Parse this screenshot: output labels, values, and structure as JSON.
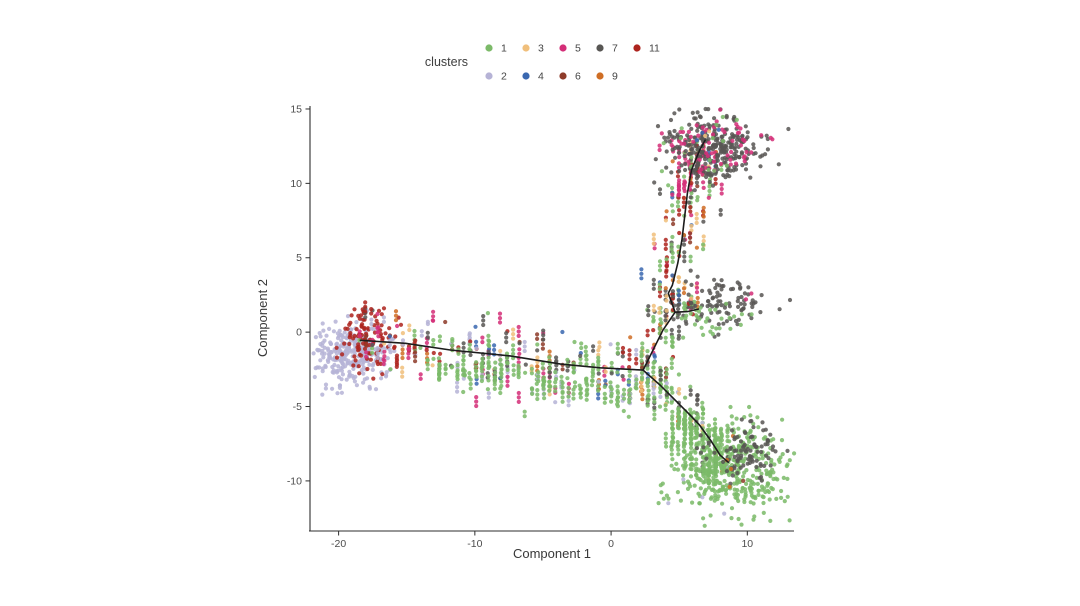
{
  "figure": {
    "background": "#ffffff"
  },
  "legend": {
    "title": "clusters",
    "rows": [
      [
        "1",
        "3",
        "5",
        "7",
        "11"
      ],
      [
        "2",
        "4",
        "6",
        "9"
      ]
    ]
  },
  "chart_data": {
    "type": "scatter",
    "title": "",
    "xlabel": "Component 1",
    "ylabel": "Component 2",
    "xlim": [
      -22.1,
      13.5
    ],
    "ylim": [
      -13.3,
      15.2
    ],
    "x_ticks": [
      -20,
      -10,
      0,
      10
    ],
    "y_ticks": [
      15,
      10,
      5,
      0,
      -5,
      -10
    ],
    "grid": false,
    "legend_position": "top",
    "legend_title": "clusters",
    "palette": {
      "1": "#7cba69",
      "2": "#b6b3d6",
      "3": "#f0bf7c",
      "4": "#3a68b0",
      "5": "#d42e78",
      "6": "#8e3b2a",
      "7": "#585654",
      "9": "#cf6e25",
      "11": "#ad241e"
    },
    "trajectory_color": "#1c1c1c",
    "trajectory": {
      "left_arm": [
        [
          -18.4,
          -0.55
        ],
        [
          -15.1,
          -0.75
        ],
        [
          -11.8,
          -1.2
        ],
        [
          -7.4,
          -1.6
        ],
        [
          -3.7,
          -2.15
        ],
        [
          -0.8,
          -2.4
        ],
        [
          2.35,
          -2.55
        ]
      ],
      "upper_branch": [
        [
          2.35,
          -2.55
        ],
        [
          3.8,
          0.13
        ],
        [
          4.7,
          1.34
        ],
        [
          4.2,
          2.62
        ],
        [
          4.5,
          3.16
        ],
        [
          4.9,
          4.64
        ],
        [
          5.2,
          6.18
        ],
        [
          5.4,
          7.73
        ],
        [
          5.6,
          9.34
        ],
        [
          5.9,
          10.89
        ],
        [
          6.5,
          12.23
        ],
        [
          6.9,
          12.9
        ]
      ],
      "side_stub": [
        [
          4.7,
          1.34
        ],
        [
          5.6,
          1.38
        ],
        [
          6.4,
          1.55
        ]
      ],
      "lower_branch": [
        [
          2.35,
          -2.55
        ],
        [
          3.6,
          -3.56
        ],
        [
          4.7,
          -4.57
        ],
        [
          5.8,
          -5.58
        ],
        [
          6.5,
          -6.25
        ],
        [
          7.3,
          -7.26
        ],
        [
          8.0,
          -8.27
        ],
        [
          8.6,
          -8.74
        ]
      ],
      "skirt_left": [
        [
          -13.5,
          -2.0
        ],
        [
          -9.0,
          -2.6
        ],
        [
          -5.0,
          -3.2
        ],
        [
          -1.0,
          -3.7
        ],
        [
          1.8,
          -3.9
        ]
      ],
      "skirt_lower": [
        [
          4.0,
          -5.3
        ],
        [
          5.5,
          -6.5
        ],
        [
          6.8,
          -7.8
        ],
        [
          7.8,
          -9.0
        ]
      ],
      "upper_top": [
        [
          5.5,
          9.0
        ],
        [
          5.9,
          10.89
        ],
        [
          6.7,
          12.6
        ]
      ]
    },
    "point_clouds": [
      {
        "name": "left-lavender-blob",
        "type": "gauss",
        "cluster": "2",
        "n": 300,
        "cx": -19.2,
        "cy": -1.5,
        "sx": 1.5,
        "sy": 1.05
      },
      {
        "name": "left-red-cluster",
        "type": "gauss",
        "cluster": "11",
        "n": 100,
        "cx": -18.0,
        "cy": -0.35,
        "sx": 0.95,
        "sy": 1.05
      },
      {
        "name": "left-arm-mix",
        "type": "strip",
        "path": "left_arm",
        "runs": 200,
        "run_max": 3,
        "jitter": 1.15,
        "offset": 0.15,
        "mix": {
          "1": 0.24,
          "7": 0.17,
          "5": 0.13,
          "11": 0.11,
          "2": 0.12,
          "4": 0.07,
          "9": 0.05,
          "3": 0.07,
          "6": 0.04
        }
      },
      {
        "name": "left-arm-green-skirt",
        "type": "strip",
        "path": "skirt_left",
        "runs": 130,
        "run_max": 3,
        "jitter": 0.75,
        "offset": 0,
        "mix": {
          "1": 0.92,
          "2": 0.08
        }
      },
      {
        "name": "upper-branch-mix",
        "type": "strip",
        "path": "upper_branch",
        "runs": 175,
        "run_max": 3,
        "jitter": 1.05,
        "offset": 0,
        "mix": {
          "1": 0.3,
          "7": 0.2,
          "5": 0.13,
          "11": 0.12,
          "3": 0.07,
          "4": 0.06,
          "9": 0.08,
          "6": 0.04
        }
      },
      {
        "name": "upper-top-pink",
        "type": "strip",
        "path": "upper_top",
        "runs": 50,
        "run_max": 2,
        "jitter": 1.1,
        "offset": 0,
        "mix": {
          "5": 0.45,
          "11": 0.18,
          "7": 0.22,
          "1": 0.15
        }
      },
      {
        "name": "top-gray-blob",
        "type": "gauss",
        "cluster": "7",
        "n": 280,
        "cx": 7.4,
        "cy": 12.4,
        "sx": 1.9,
        "sy": 1.1
      },
      {
        "name": "top-blob-pink-ring",
        "type": "ring",
        "cluster": "5",
        "n": 55,
        "cx": 7.4,
        "cy": 12.5,
        "rx": 2.5,
        "ry": 1.5,
        "spread": 0.35
      },
      {
        "name": "top-blob-green-edge",
        "type": "ring",
        "cluster": "1",
        "n": 16,
        "cx": 7.4,
        "cy": 12.3,
        "rx": 2.9,
        "ry": 1.8,
        "spread": 0.4
      },
      {
        "name": "top-blob-blue-accents",
        "type": "points",
        "cluster": "4",
        "pts": [
          [
            6.7,
            13.4
          ],
          [
            7.9,
            13.6
          ],
          [
            6.3,
            12.9
          ]
        ]
      },
      {
        "name": "top-blob-tan-accents",
        "type": "points",
        "cluster": "3",
        "pts": [
          [
            7.2,
            13.5
          ],
          [
            6.9,
            13.2
          ]
        ]
      },
      {
        "name": "side-gray-blob",
        "type": "gauss",
        "cluster": "7",
        "n": 100,
        "cx": 7.9,
        "cy": 1.8,
        "sx": 1.5,
        "sy": 0.85
      },
      {
        "name": "side-blob-green",
        "type": "gauss",
        "cluster": "1",
        "n": 30,
        "cx": 7.4,
        "cy": 0.9,
        "sx": 1.4,
        "sy": 0.55
      },
      {
        "name": "side-blob-red-accents",
        "type": "points",
        "cluster": "11",
        "pts": [
          [
            5.7,
            1.9
          ],
          [
            6.0,
            1.2
          ]
        ]
      },
      {
        "name": "side-blob-pink-accents",
        "type": "points",
        "cluster": "5",
        "pts": [
          [
            10.3,
            2.6
          ],
          [
            9.9,
            2.2
          ]
        ]
      },
      {
        "name": "stub-mix",
        "type": "strip",
        "path": "side_stub",
        "runs": 14,
        "run_max": 2,
        "jitter": 0.35,
        "offset": 0,
        "mix": {
          "1": 0.6,
          "7": 0.4
        }
      },
      {
        "name": "lower-branch-mix",
        "type": "strip",
        "path": "lower_branch",
        "runs": 120,
        "run_max": 3,
        "jitter": 0.8,
        "offset": 0,
        "mix": {
          "1": 0.72,
          "7": 0.16,
          "3": 0.04,
          "9": 0.04,
          "2": 0.04
        }
      },
      {
        "name": "lower-green-skirt",
        "type": "strip",
        "path": "skirt_lower",
        "runs": 85,
        "run_max": 3,
        "jitter": 0.8,
        "offset": -0.6,
        "mix": {
          "1": 1.0
        }
      },
      {
        "name": "bottom-green-blob",
        "type": "gauss",
        "cluster": "1",
        "n": 400,
        "cx": 8.8,
        "cy": -9.3,
        "sx": 2.1,
        "sy": 1.55
      },
      {
        "name": "bottom-gray-blob",
        "type": "gauss",
        "cluster": "7",
        "n": 90,
        "cx": 10.0,
        "cy": -7.9,
        "sx": 1.3,
        "sy": 0.95
      },
      {
        "name": "bottom-gray-left",
        "type": "points",
        "cluster": "7",
        "pts": [
          [
            6.6,
            -8.1
          ],
          [
            7.0,
            -8.5
          ],
          [
            6.3,
            -7.8
          ]
        ]
      },
      {
        "name": "bottom-orange-accents",
        "type": "points",
        "cluster": "9",
        "pts": [
          [
            8.7,
            -10.4
          ],
          [
            8.8,
            -9.2
          ],
          [
            8.5,
            -8.6
          ]
        ]
      },
      {
        "name": "bottom-brown-accent",
        "type": "points",
        "cluster": "6",
        "pts": [
          [
            9.7,
            -10.0
          ]
        ]
      },
      {
        "name": "bottom-lavender-stragglers",
        "type": "points",
        "cluster": "2",
        "pts": [
          [
            4.2,
            -11.5
          ],
          [
            8.3,
            -12.2
          ],
          [
            6.7,
            -11.1
          ],
          [
            5.3,
            -9.9
          ]
        ]
      },
      {
        "name": "right-green-stragglers",
        "type": "points",
        "cluster": "1",
        "pts": [
          [
            12.6,
            -8.2
          ],
          [
            12.9,
            -9.0
          ],
          [
            12.2,
            -9.9
          ],
          [
            11.9,
            -7.2
          ]
        ]
      }
    ]
  }
}
